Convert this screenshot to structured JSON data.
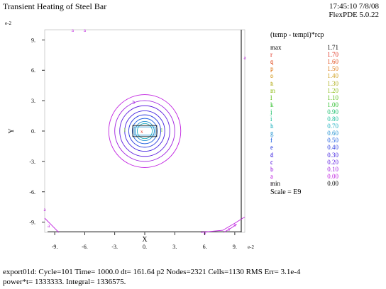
{
  "header": {
    "title": "Transient Heating of Steel Bar",
    "timestamp": "17:45:10 7/8/08",
    "version": "FlexPDE 5.0.22"
  },
  "colors": {
    "frame": "#000000",
    "r": "#e0301e",
    "q": "#e05020",
    "p": "#e08020",
    "o": "#d0a020",
    "n": "#b0b020",
    "m": "#90c020",
    "l": "#60c020",
    "k": "#30c030",
    "j": "#20c070",
    "i": "#20c0a0",
    "h": "#20b0c0",
    "g": "#2090d0",
    "f": "#2060e0",
    "e": "#3040e0",
    "d": "#4020e0",
    "c": "#6020e0",
    "b": "#a020e0",
    "a": "#c020e0"
  },
  "chart_data": {
    "type": "contour",
    "title": "Transient Heating of Steel Bar",
    "xlabel": "X",
    "ylabel": "Y",
    "x_exponent": "e-2",
    "y_exponent": "e-2",
    "xlim": [
      -10,
      10
    ],
    "ylim": [
      -10,
      10
    ],
    "x_ticks": [
      -9,
      -6,
      -3,
      0,
      3,
      6,
      9
    ],
    "x_tick_labels": [
      "-9.",
      "-6.",
      "-3.",
      "0.",
      "3.",
      "6.",
      "9."
    ],
    "y_ticks": [
      9,
      6,
      3,
      0,
      -3,
      -6,
      -9
    ],
    "y_tick_labels": [
      "9.",
      "6.",
      "3.",
      "0.",
      "-3.",
      "-6.",
      "-9."
    ],
    "contour_center": [
      0,
      0
    ],
    "contour_radii": [
      3.6,
      3.0,
      2.5,
      2.0,
      1.6,
      1.25,
      0.95,
      0.75
    ],
    "contour_levels": [
      "a",
      "b",
      "c",
      "d",
      "e",
      "f",
      "g",
      "h"
    ],
    "hot_box": {
      "x": [
        -1.2,
        1.2
      ],
      "y": [
        -0.55,
        0.55
      ]
    },
    "contour_labels": [
      {
        "text": "b",
        "x": -1.1,
        "y": 2.9,
        "level": "b"
      },
      {
        "text": "l",
        "x": -2.0,
        "y": 0.15,
        "level": "l"
      },
      {
        "text": "l",
        "x": 1.7,
        "y": 0.15,
        "level": "l"
      },
      {
        "text": "x",
        "x": -0.3,
        "y": 0.0,
        "level": "r"
      },
      {
        "text": "a",
        "x": -7.2,
        "y": 10.0,
        "level": "a"
      },
      {
        "text": "a",
        "x": -6.0,
        "y": 10.0,
        "level": "a"
      },
      {
        "text": "a",
        "x": 10.0,
        "y": 7.3,
        "level": "a"
      },
      {
        "text": "a",
        "x": -10.0,
        "y": -7.7,
        "level": "a"
      },
      {
        "text": "a",
        "x": -9.6,
        "y": -9.3,
        "level": "a"
      },
      {
        "text": "a",
        "x": 6.0,
        "y": -10.0,
        "level": "a"
      },
      {
        "text": "a",
        "x": 8.4,
        "y": -9.6,
        "level": "a"
      },
      {
        "text": "a",
        "x": 9.0,
        "y": -9.2,
        "level": "a"
      }
    ],
    "corner_arcs": [
      {
        "level": "a",
        "points": [
          [
            -10,
            -8.6
          ],
          [
            -9.2,
            -9.4
          ],
          [
            -8.6,
            -10
          ]
        ]
      },
      {
        "level": "a",
        "points": [
          [
            5.6,
            -10
          ],
          [
            7.8,
            -9.8
          ],
          [
            9.0,
            -9.1
          ],
          [
            9.8,
            -8.6
          ],
          [
            10,
            -8.5
          ]
        ]
      },
      {
        "level": "a",
        "points": [
          [
            7.9,
            -10
          ],
          [
            8.6,
            -9.6
          ],
          [
            9.2,
            -9.2
          ]
        ]
      }
    ],
    "legend": {
      "title": "(temp - tempi)*rcp",
      "max_label": "max",
      "max_value": "1.71",
      "min_label": "min",
      "min_value": "0.00",
      "entries": [
        {
          "key": "r :",
          "value": "1.70",
          "level": "r"
        },
        {
          "key": "q :",
          "value": "1.60",
          "level": "q"
        },
        {
          "key": "p :",
          "value": "1.50",
          "level": "p"
        },
        {
          "key": "o :",
          "value": "1.40",
          "level": "o"
        },
        {
          "key": "n :",
          "value": "1.30",
          "level": "n"
        },
        {
          "key": "m :",
          "value": "1.20",
          "level": "m"
        },
        {
          "key": "l :",
          "value": "1.10",
          "level": "l"
        },
        {
          "key": "k :",
          "value": "1.00",
          "level": "k"
        },
        {
          "key": "j :",
          "value": "0.90",
          "level": "j"
        },
        {
          "key": "i :",
          "value": "0.80",
          "level": "i"
        },
        {
          "key": "h :",
          "value": "0.70",
          "level": "h"
        },
        {
          "key": "g :",
          "value": "0.60",
          "level": "g"
        },
        {
          "key": "f :",
          "value": "0.50",
          "level": "f"
        },
        {
          "key": "e :",
          "value": "0.40",
          "level": "e"
        },
        {
          "key": "d :",
          "value": "0.30",
          "level": "d"
        },
        {
          "key": "c :",
          "value": "0.20",
          "level": "c"
        },
        {
          "key": "b :",
          "value": "0.10",
          "level": "b"
        },
        {
          "key": "a :",
          "value": "0.00",
          "level": "a"
        }
      ],
      "scale": "Scale = E9"
    }
  },
  "footer": {
    "line1": "export01d:  Cycle=101  Time= 1000.0  dt= 161.64  p2  Nodes=2321 Cells=1130 RMS Err= 3.1e-4",
    "line2": "power*t=   1333333.   Integral=   1336575."
  }
}
